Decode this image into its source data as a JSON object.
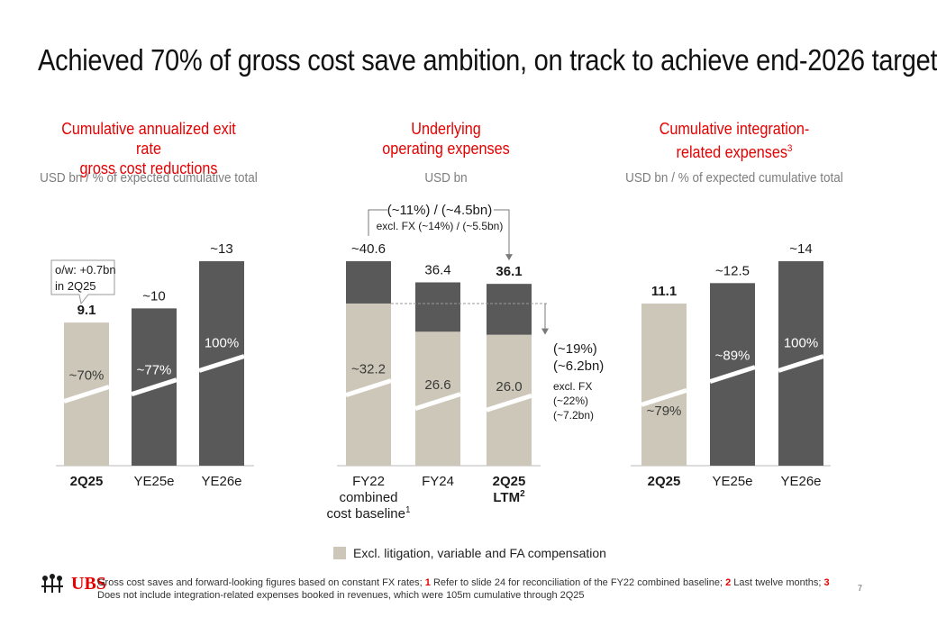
{
  "title": "Achieved 70% of gross cost save ambition, on track to achieve end-2026 target",
  "panels": [
    {
      "title_line1": "Cumulative annualized exit rate",
      "title_line2": "gross cost reductions",
      "unit": "USD bn / % of expected cumulative total"
    },
    {
      "title_line1": "Underlying",
      "title_line2": "operating expenses",
      "unit": "USD bn"
    },
    {
      "title_line1": "Cumulative integration-",
      "title_line2": "related expenses",
      "title_sup": "3",
      "unit": "USD bn / % of expected cumulative total"
    }
  ],
  "chart_data": [
    {
      "type": "bar",
      "title": "Cumulative annualized exit rate gross cost reductions",
      "unit": "USD bn / % of expected cumulative total",
      "categories": [
        "2Q25",
        "YE25e",
        "YE26e"
      ],
      "category_bold": [
        true,
        false,
        false
      ],
      "values": [
        9.1,
        10,
        13
      ],
      "value_labels": [
        "9.1",
        "~10",
        "~13"
      ],
      "value_label_bold": [
        true,
        false,
        false
      ],
      "pct_labels": [
        "~70%",
        "~77%",
        "100%"
      ],
      "colors": [
        "#ccc7b8",
        "#595959",
        "#595959"
      ],
      "ylim": [
        0,
        13
      ],
      "callout": {
        "line1": "o/w: +0.7bn",
        "line2": "in 2Q25"
      }
    },
    {
      "type": "stacked_bar",
      "title": "Underlying operating expenses",
      "unit": "USD bn",
      "categories": [
        {
          "lines": [
            "FY22",
            "combined",
            "cost baseline"
          ],
          "sup": "1",
          "bold": false
        },
        {
          "lines": [
            "FY24"
          ],
          "sup": "",
          "bold": false
        },
        {
          "lines": [
            "2Q25",
            "LTM"
          ],
          "sup": "2",
          "bold": true
        }
      ],
      "series": [
        {
          "name": "Excl. litigation, variable and FA compensation",
          "values": [
            32.2,
            26.6,
            26.0
          ],
          "labels": [
            "~32.2",
            "26.6",
            "26.0"
          ],
          "color": "#ccc7b8"
        },
        {
          "values": [
            8.4,
            9.8,
            10.1
          ],
          "color": "#595959"
        }
      ],
      "totals": [
        40.6,
        36.4,
        36.1
      ],
      "total_labels": [
        "~40.6",
        "36.4",
        "36.1"
      ],
      "total_bold": [
        false,
        false,
        true
      ],
      "ylim": [
        0,
        40.6
      ],
      "annotations": {
        "top_line1": "(~11%) / (~4.5bn)",
        "top_line2": "excl. FX (~14%) / (~5.5bn)",
        "right_line1": "(~19%)",
        "right_line2": "(~6.2bn)",
        "right_sub1": "excl. FX",
        "right_sub2": "(~22%)",
        "right_sub3": "(~7.2bn)"
      }
    },
    {
      "type": "bar",
      "title": "Cumulative integration-related expenses",
      "unit": "USD bn / % of expected cumulative total",
      "categories": [
        "2Q25",
        "YE25e",
        "YE26e"
      ],
      "category_bold": [
        true,
        false,
        false
      ],
      "values": [
        11.1,
        12.5,
        14
      ],
      "value_labels": [
        "11.1",
        "~12.5",
        "~14"
      ],
      "value_label_bold": [
        true,
        false,
        false
      ],
      "pct_labels": [
        "~79%",
        "~89%",
        "100%"
      ],
      "colors": [
        "#ccc7b8",
        "#595959",
        "#595959"
      ],
      "ylim": [
        0,
        14
      ]
    }
  ],
  "legend": {
    "label": "Excl. litigation, variable and FA compensation",
    "color": "#ccc7b8"
  },
  "footer": {
    "logo": "UBS",
    "text_a": "Gross cost saves and forward-looking figures based on constant FX rates; ",
    "n1": "1",
    "text_b": " Refer to slide 24 for reconciliation of the FY22 combined baseline; ",
    "n2": "2",
    "text_c": " Last twelve months; ",
    "n3": "3",
    "text_d": " Does not include integration-related expenses booked in revenues, which were 105m cumulative through 2Q25"
  },
  "page_number": "7",
  "colors": {
    "accent": "#e60000",
    "dark_bar": "#595959",
    "light_bar": "#ccc7b8"
  }
}
